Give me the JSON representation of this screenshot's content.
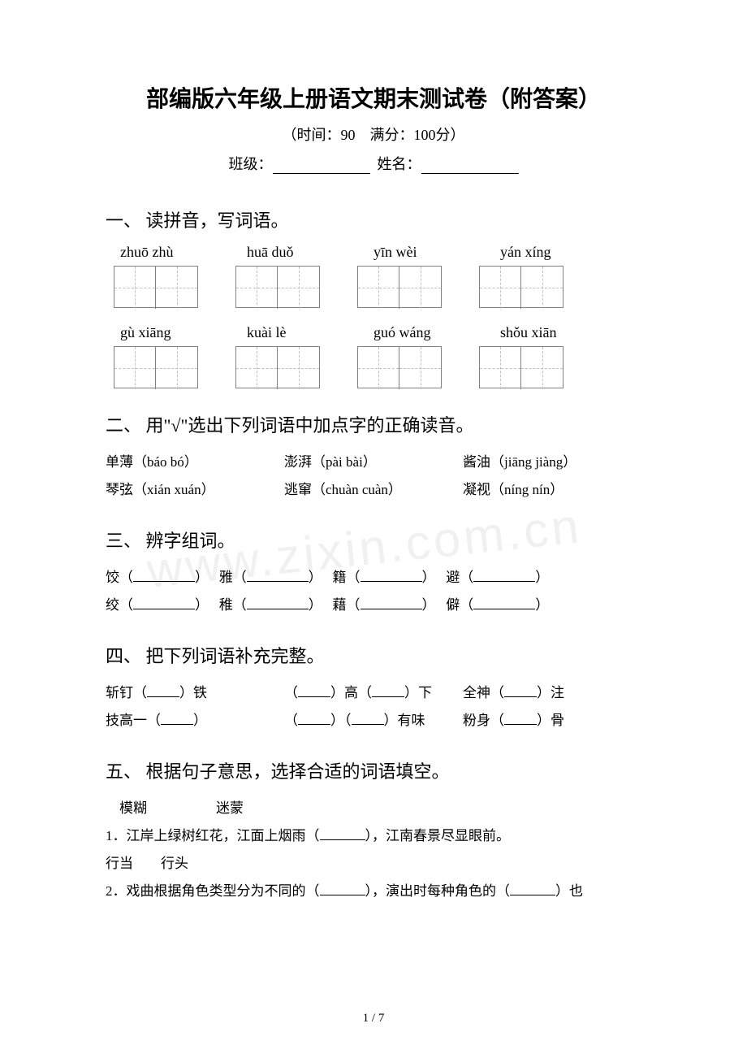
{
  "title": "部编版六年级上册语文期末测试卷（附答案）",
  "subtitle": "（时间：90　满分：100分）",
  "nameline": {
    "class_label": "班级：",
    "name_label": "姓名："
  },
  "watermark": "www.zixin.com.cn",
  "sections": {
    "s1": {
      "title": "一、 读拼音，写词语。",
      "row1": [
        "zhuō zhù",
        "huā duǒ",
        "yīn wèi",
        "yán xíng"
      ],
      "row2": [
        "gù xiāng",
        "kuài lè",
        "guó wáng",
        "shǒu xiān"
      ]
    },
    "s2": {
      "title": "二、 用\"√\"选出下列词语中加点字的正确读音。",
      "line1": {
        "a": "单薄（báo bó）",
        "b": "澎湃（pài bài）",
        "c": "酱油（jiāng jiàng）"
      },
      "line2": {
        "a": "琴弦（xián xuán）",
        "b": "逃窜（chuàn cuàn）",
        "c": "凝视（níng nín）"
      }
    },
    "s3": {
      "title": "三、 辨字组词。",
      "line1": {
        "a": "饺（",
        "b": "）　 雅（",
        "c": "）　 籍（",
        "d": "）　 避（",
        "e": "）"
      },
      "line2": {
        "a": "绞（",
        "b": "）　 稚（",
        "c": "）　 藉（",
        "d": "）　 僻（",
        "e": "）"
      }
    },
    "s4": {
      "title": "四、 把下列词语补充完整。",
      "line1": {
        "a": "斩钉（",
        "b": "）铁",
        "c": "（",
        "d": "）高（",
        "e": "）下",
        "f": "全神（",
        "g": "）注"
      },
      "line2": {
        "a": "技高一（",
        "b": "）",
        "c": "（",
        "d": "）（",
        "e": "）有味",
        "f": "粉身（",
        "g": "）骨"
      }
    },
    "s5": {
      "title": "五、 根据句子意思，选择合适的词语填空。",
      "opt1": "　模糊　　　　　迷蒙",
      "line1": {
        "a": "1．江岸上绿树红花，江面上烟雨（",
        "b": "），江南春景尽显眼前。"
      },
      "opt2": "行当　　行头",
      "line2": {
        "a": "2．戏曲根据角色类型分为不同的（",
        "b": "），演出时每种角色的（",
        "c": "）也"
      }
    }
  },
  "page_num": "1 / 7"
}
